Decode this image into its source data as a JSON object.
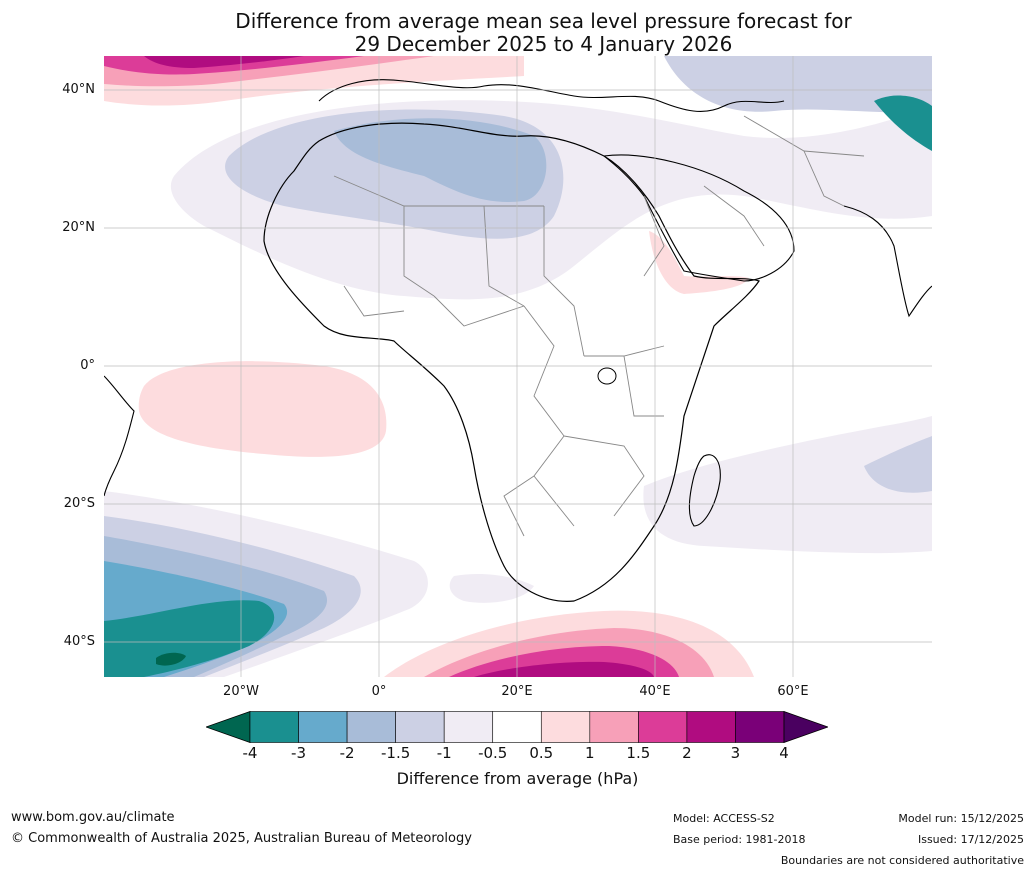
{
  "header": {
    "title_line1": "Difference from average mean sea level pressure forecast for",
    "title_line2": "29 December 2025 to 4 January 2026"
  },
  "map": {
    "lat_labels": [
      "40°N",
      "20°N",
      "0°",
      "20°S",
      "40°S"
    ],
    "lon_labels": [
      "20°W",
      "0°",
      "20°E",
      "40°E",
      "60°E"
    ]
  },
  "colorbar": {
    "ticks": [
      "-4",
      "-3",
      "-2",
      "-1.5",
      "-1",
      "-0.5",
      "0.5",
      "1",
      "1.5",
      "2",
      "3",
      "4"
    ],
    "colors": [
      "#1a9090",
      "#66aacc",
      "#a8bcd8",
      "#ccd0e4",
      "#f0ecf4",
      "#ffffff",
      "#fddcde",
      "#f7a0b8",
      "#dc3c98",
      "#b00c80",
      "#7a0078"
    ],
    "under_color": "#006650",
    "over_color": "#4a0060",
    "label": "Difference from average (hPa)"
  },
  "footer": {
    "website": "www.bom.gov.au/climate",
    "copyright": "© Commonwealth of Australia 2025, Australian Bureau of Meteorology",
    "model": "Model: ACCESS-S2",
    "base_period": "Base period: 1981-2018",
    "model_run": "Model run: 15/12/2025",
    "issued": "Issued: 17/12/2025",
    "disclaimer": "Boundaries are not considered authoritative"
  }
}
